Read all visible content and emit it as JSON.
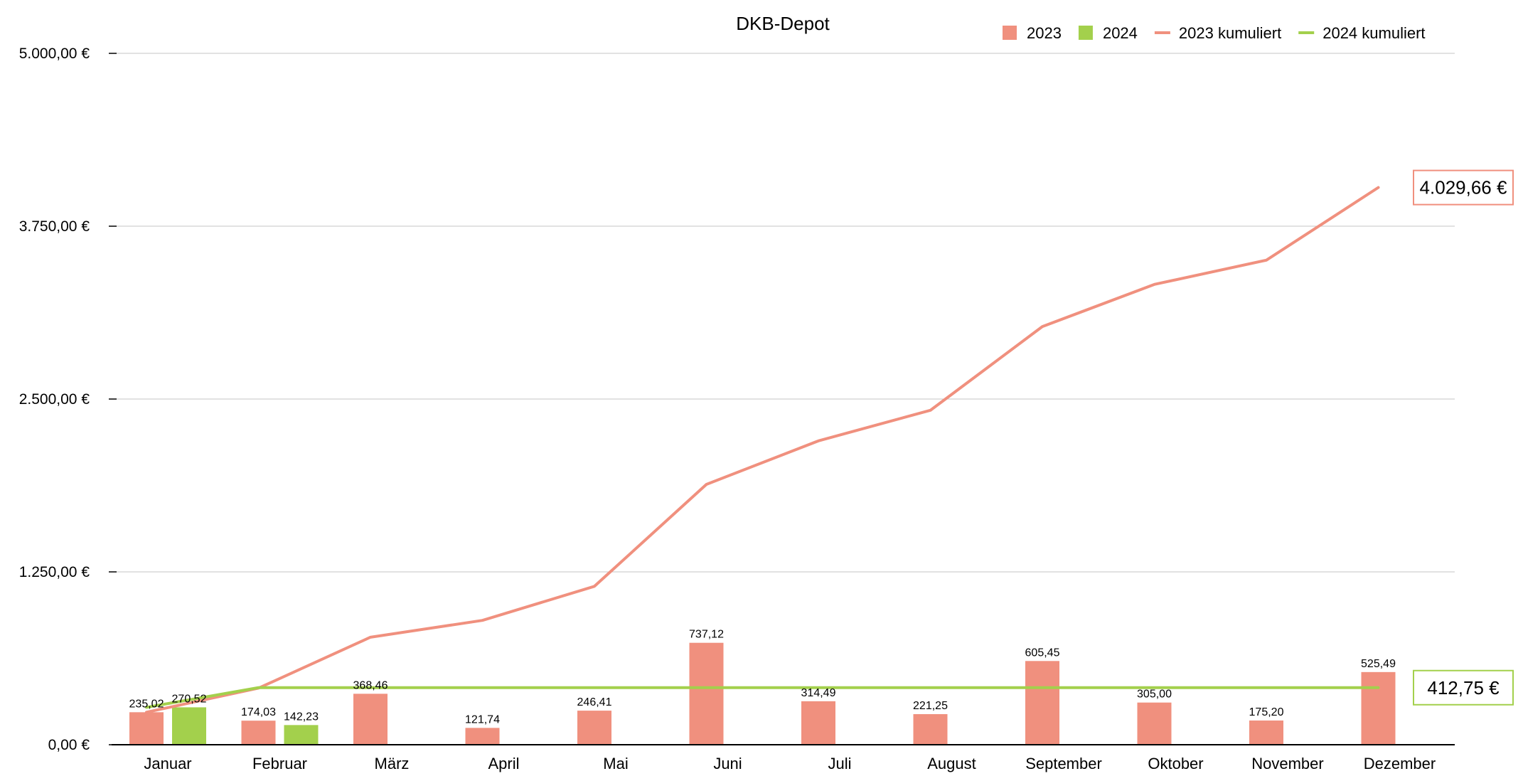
{
  "chart_data": {
    "type": "bar",
    "title": "DKB-Depot",
    "categories": [
      "Januar",
      "Februar",
      "März",
      "April",
      "Mai",
      "Juni",
      "Juli",
      "August",
      "September",
      "Oktober",
      "November",
      "Dezember"
    ],
    "ylim": [
      0,
      5000
    ],
    "yticks": [
      {
        "value": 0,
        "label": "0,00 €"
      },
      {
        "value": 1250,
        "label": "1.250,00 €"
      },
      {
        "value": 2500,
        "label": "2.500,00 €"
      },
      {
        "value": 3750,
        "label": "3.750,00 €"
      },
      {
        "value": 5000,
        "label": "5.000,00 €"
      }
    ],
    "grid": true,
    "legend_position": "top-right",
    "series": [
      {
        "name": "2023",
        "kind": "bar",
        "color": "#f0907e",
        "values": [
          235.02,
          174.03,
          368.46,
          121.74,
          246.41,
          737.12,
          314.49,
          221.25,
          605.45,
          305.0,
          175.2,
          525.49
        ],
        "labels": [
          "235,02",
          "174,03",
          "368,46",
          "121,74",
          "246,41",
          "737,12",
          "314,49",
          "221,25",
          "605,45",
          "305,00",
          "175,20",
          "525,49"
        ]
      },
      {
        "name": "2024",
        "kind": "bar",
        "color": "#a3d04c",
        "values": [
          270.52,
          142.23,
          null,
          null,
          null,
          null,
          null,
          null,
          null,
          null,
          null,
          null
        ],
        "labels": [
          "270,52",
          "142,23",
          null,
          null,
          null,
          null,
          null,
          null,
          null,
          null,
          null,
          null
        ]
      },
      {
        "name": "2023 kumuliert",
        "kind": "line",
        "color": "#f0907e",
        "values": [
          235.02,
          409.05,
          777.51,
          899.25,
          1145.66,
          1882.78,
          2197.27,
          2418.52,
          3023.97,
          3328.97,
          3504.17,
          4029.66
        ],
        "end_label": "4.029,66 €"
      },
      {
        "name": "2024 kumuliert",
        "kind": "line",
        "color": "#a3d04c",
        "values": [
          270.52,
          412.75,
          412.75,
          412.75,
          412.75,
          412.75,
          412.75,
          412.75,
          412.75,
          412.75,
          412.75,
          412.75
        ],
        "end_label": "412,75 €"
      }
    ]
  }
}
